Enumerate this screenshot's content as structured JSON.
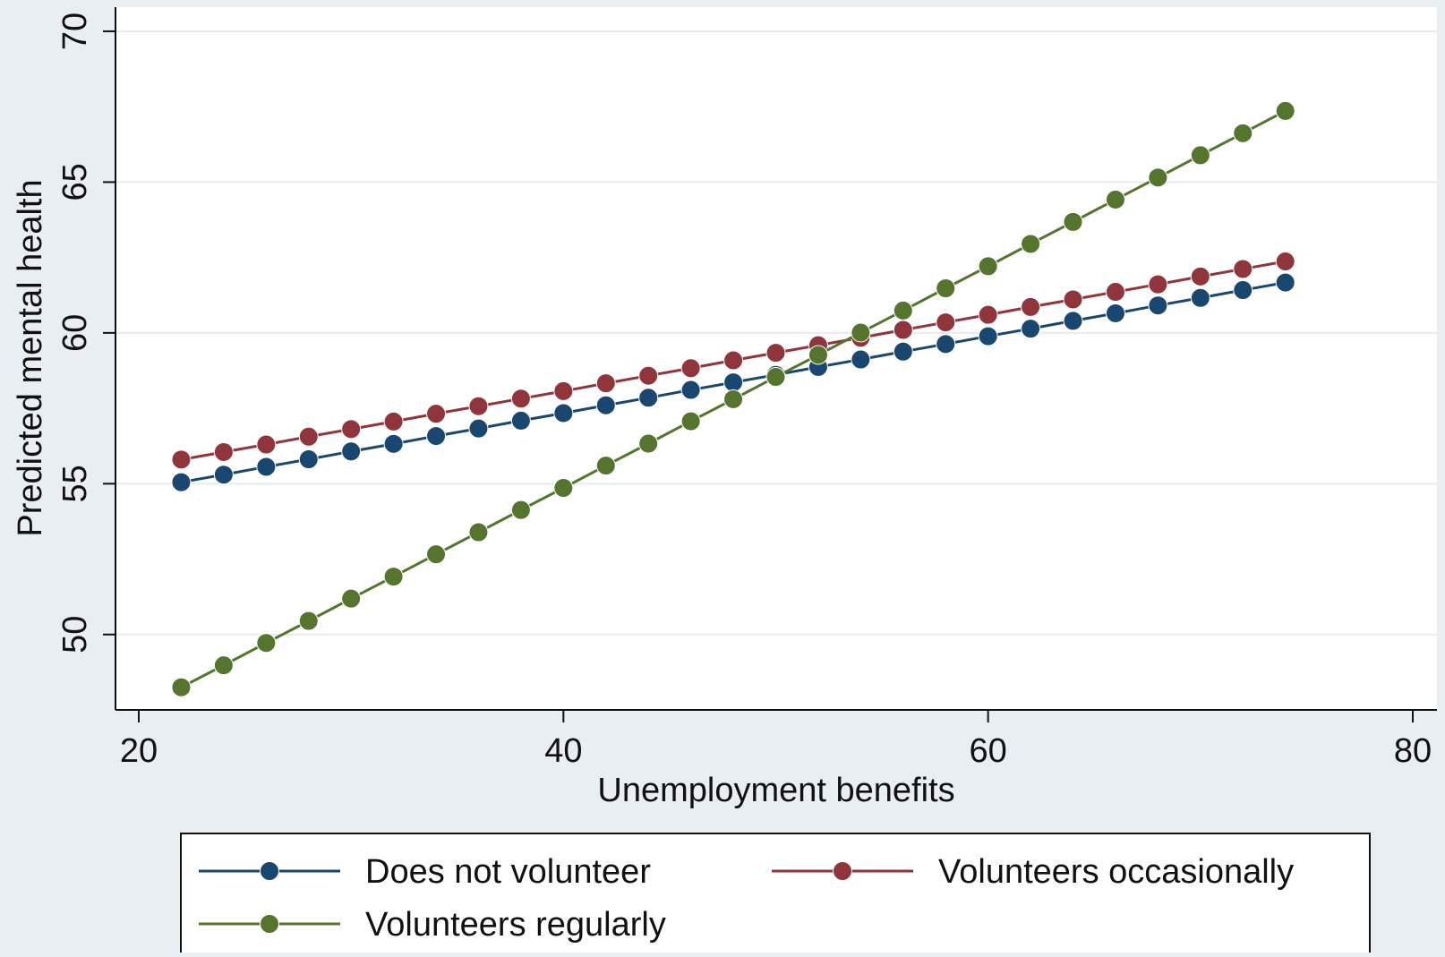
{
  "chart_data": {
    "type": "line",
    "title": "",
    "xlabel": "Unemployment benefits",
    "ylabel": "Predicted mental health",
    "xlim": [
      20,
      80
    ],
    "ylim": [
      47.5,
      70.8
    ],
    "xticks": [
      20,
      40,
      60,
      80
    ],
    "yticks": [
      50,
      55,
      60,
      65,
      70
    ],
    "grid": "horizontal",
    "legend_position": "bottom",
    "markers": "circle",
    "x": [
      22,
      24,
      26,
      28,
      30,
      32,
      34,
      36,
      38,
      40,
      42,
      44,
      46,
      48,
      50,
      52,
      54,
      56,
      58,
      60,
      62,
      64,
      66,
      68,
      70,
      72,
      74
    ],
    "series": [
      {
        "name": "Does not volunteer",
        "color": "#1a476f",
        "values": [
          55.05,
          55.3,
          55.56,
          55.81,
          56.07,
          56.32,
          56.58,
          56.83,
          57.09,
          57.34,
          57.6,
          57.85,
          58.11,
          58.36,
          58.61,
          58.87,
          59.12,
          59.38,
          59.63,
          59.89,
          60.14,
          60.4,
          60.65,
          60.91,
          61.16,
          61.42,
          61.67
        ]
      },
      {
        "name": "Volunteers occasionally",
        "color": "#90353b",
        "values": [
          55.8,
          56.05,
          56.3,
          56.56,
          56.81,
          57.06,
          57.32,
          57.57,
          57.82,
          58.07,
          58.33,
          58.58,
          58.83,
          59.09,
          59.34,
          59.59,
          59.84,
          60.1,
          60.35,
          60.6,
          60.86,
          61.11,
          61.36,
          61.61,
          61.87,
          62.12,
          62.37
        ]
      },
      {
        "name": "Volunteers regularly",
        "color": "#55752f",
        "values": [
          48.25,
          48.98,
          49.72,
          50.45,
          51.19,
          51.92,
          52.66,
          53.39,
          54.13,
          54.86,
          55.6,
          56.33,
          57.07,
          57.8,
          58.54,
          59.27,
          60.01,
          60.74,
          61.48,
          62.21,
          62.95,
          63.68,
          64.42,
          65.15,
          65.89,
          66.62,
          67.36
        ]
      }
    ]
  }
}
